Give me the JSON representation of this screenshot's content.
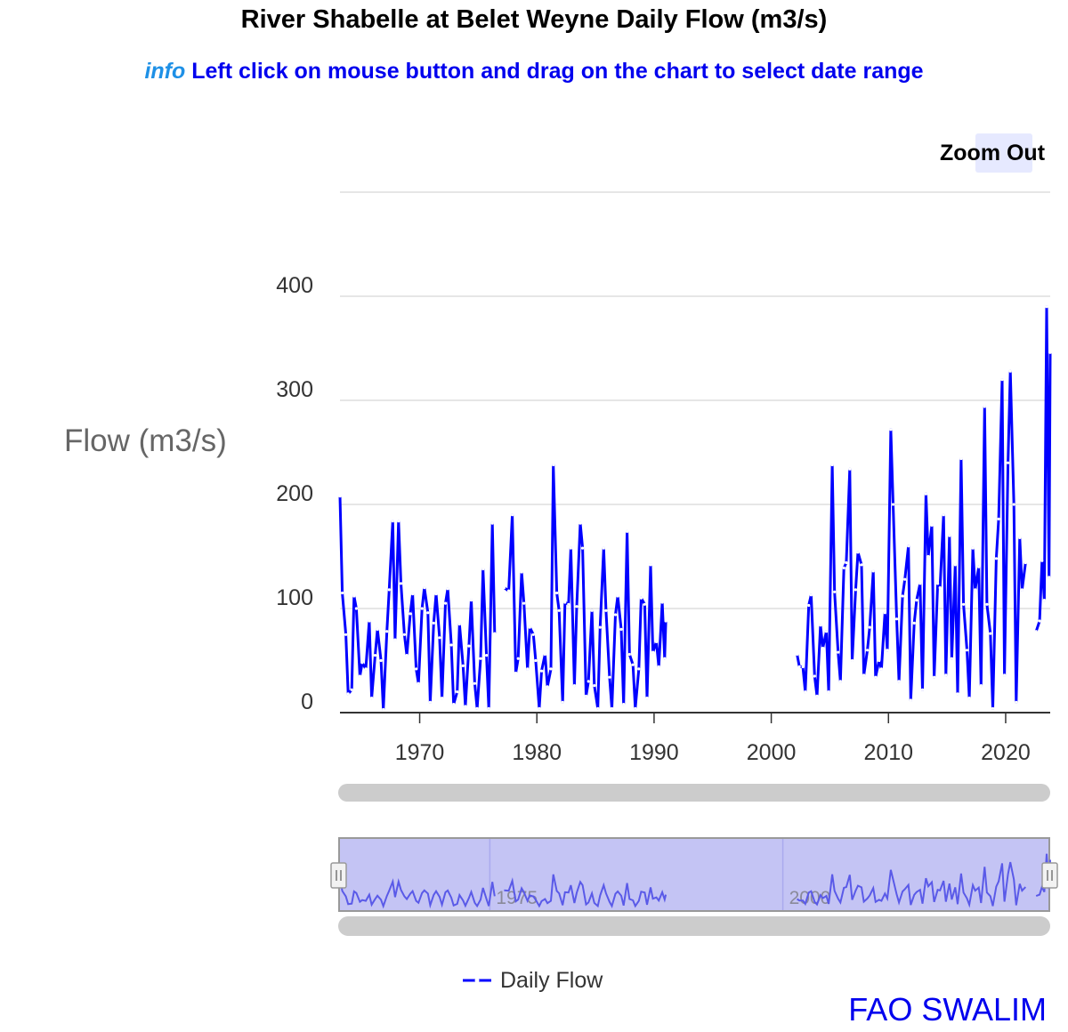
{
  "title": "River Shabelle at Belet Weyne Daily Flow (m3/s)",
  "info": {
    "tag": "info",
    "text": "Left click on mouse button and drag on the chart to select date range"
  },
  "zoom_out_label": "Zoom Out",
  "brand": "FAO SWALIM",
  "colors": {
    "series": "#0000ff",
    "navigator_fill": "#c4c4f4",
    "navigator_line": "#5a5ae8",
    "scrollbar": "#cccccc"
  },
  "chart_data": {
    "type": "line",
    "title": "River Shabelle at Belet Weyne Daily Flow (m3/s)",
    "ylabel": "Flow (m3/s)",
    "xlabel": "",
    "x_range": [
      1963.2,
      2023.8
    ],
    "ylim": [
      0,
      500
    ],
    "yticks": [
      0,
      100,
      200,
      300,
      400
    ],
    "xticks": [
      1970,
      1980,
      1990,
      2000,
      2010,
      2020
    ],
    "navigator_ticks": [
      1975,
      2000
    ],
    "grid": true,
    "legend": "bottom",
    "series": [
      {
        "name": "Daily Flow",
        "segments": [
          [
            [
              1963.2,
              208
            ],
            [
              1963.4,
              115
            ],
            [
              1963.7,
              75
            ],
            [
              1963.9,
              18
            ],
            [
              1964.2,
              22
            ],
            [
              1964.4,
              112
            ],
            [
              1964.6,
              100
            ],
            [
              1964.9,
              35
            ],
            [
              1965.1,
              48
            ],
            [
              1965.4,
              42
            ],
            [
              1965.7,
              88
            ],
            [
              1965.9,
              14
            ],
            [
              1966.2,
              55
            ],
            [
              1966.4,
              80
            ],
            [
              1966.7,
              50
            ],
            [
              1966.9,
              3
            ],
            [
              1967.2,
              78
            ],
            [
              1967.4,
              118
            ],
            [
              1967.7,
              184
            ],
            [
              1967.9,
              70
            ],
            [
              1968.2,
              184
            ],
            [
              1968.4,
              124
            ],
            [
              1968.7,
              75
            ],
            [
              1968.9,
              55
            ],
            [
              1969.2,
              95
            ],
            [
              1969.4,
              114
            ],
            [
              1969.7,
              42
            ],
            [
              1969.9,
              28
            ],
            [
              1970.2,
              100
            ],
            [
              1970.4,
              120
            ],
            [
              1970.7,
              96
            ],
            [
              1970.9,
              10
            ],
            [
              1971.2,
              86
            ],
            [
              1971.4,
              114
            ],
            [
              1971.7,
              72
            ],
            [
              1971.9,
              14
            ],
            [
              1972.2,
              105
            ],
            [
              1972.4,
              119
            ],
            [
              1972.7,
              65
            ],
            [
              1972.9,
              8
            ],
            [
              1973.2,
              20
            ],
            [
              1973.4,
              85
            ],
            [
              1973.7,
              45
            ],
            [
              1973.9,
              6
            ],
            [
              1974.2,
              64
            ],
            [
              1974.4,
              108
            ],
            [
              1974.7,
              28
            ],
            [
              1974.9,
              4
            ],
            [
              1975.2,
              52
            ],
            [
              1975.4,
              138
            ],
            [
              1975.7,
              55
            ],
            [
              1975.9,
              4
            ],
            [
              1976.2,
              182
            ],
            [
              1976.4,
              76
            ]
          ],
          [
            [
              1977.2,
              120
            ],
            [
              1977.6,
              117
            ],
            [
              1977.9,
              190
            ],
            [
              1978.2,
              38
            ],
            [
              1978.4,
              52
            ],
            [
              1978.7,
              135
            ],
            [
              1978.9,
              105
            ],
            [
              1979.2,
              42
            ],
            [
              1979.4,
              82
            ],
            [
              1979.7,
              75
            ],
            [
              1979.9,
              50
            ],
            [
              1980.2,
              4
            ],
            [
              1980.4,
              40
            ],
            [
              1980.7,
              56
            ],
            [
              1980.9,
              25
            ],
            [
              1981.2,
              42
            ],
            [
              1981.4,
              238
            ],
            [
              1981.7,
              115
            ],
            [
              1981.9,
              98
            ],
            [
              1982.2,
              10
            ],
            [
              1982.4,
              106
            ],
            [
              1982.7,
              104
            ],
            [
              1982.9,
              158
            ],
            [
              1983.2,
              26
            ],
            [
              1983.4,
              102
            ],
            [
              1983.7,
              182
            ],
            [
              1983.9,
              158
            ],
            [
              1984.2,
              16
            ],
            [
              1984.4,
              30
            ],
            [
              1984.7,
              98
            ],
            [
              1984.9,
              26
            ],
            [
              1985.2,
              4
            ],
            [
              1985.4,
              82
            ],
            [
              1985.7,
              158
            ],
            [
              1985.9,
              98
            ],
            [
              1986.2,
              34
            ],
            [
              1986.4,
              4
            ],
            [
              1986.7,
              94
            ],
            [
              1986.9,
              112
            ],
            [
              1987.2,
              80
            ],
            [
              1987.4,
              8
            ],
            [
              1987.7,
              174
            ],
            [
              1987.9,
              56
            ],
            [
              1988.2,
              46
            ],
            [
              1988.4,
              4
            ],
            [
              1988.7,
              42
            ],
            [
              1988.9,
              110
            ],
            [
              1989.2,
              104
            ],
            [
              1989.4,
              14
            ],
            [
              1989.7,
              142
            ],
            [
              1989.9,
              58
            ],
            [
              1990.2,
              68
            ],
            [
              1990.4,
              44
            ],
            [
              1990.7,
              106
            ],
            [
              1990.9,
              52
            ],
            [
              1991.0,
              88
            ]
          ],
          [
            [
              2002.2,
              56
            ],
            [
              2002.4,
              44
            ],
            [
              2002.7,
              44
            ],
            [
              2002.9,
              20
            ],
            [
              2003.2,
              103
            ],
            [
              2003.4,
              113
            ],
            [
              2003.7,
              35
            ],
            [
              2003.9,
              16
            ],
            [
              2004.2,
              84
            ],
            [
              2004.4,
              62
            ],
            [
              2004.7,
              78
            ],
            [
              2004.9,
              20
            ],
            [
              2005.2,
              238
            ],
            [
              2005.4,
              116
            ],
            [
              2005.7,
              58
            ],
            [
              2005.9,
              30
            ],
            [
              2006.2,
              139
            ],
            [
              2006.4,
              144
            ],
            [
              2006.7,
              234
            ],
            [
              2006.9,
              50
            ],
            [
              2007.2,
              118
            ],
            [
              2007.4,
              154
            ],
            [
              2007.7,
              142
            ],
            [
              2007.9,
              36
            ],
            [
              2008.2,
              60
            ],
            [
              2008.4,
              82
            ],
            [
              2008.7,
              136
            ],
            [
              2008.9,
              34
            ],
            [
              2009.2,
              50
            ],
            [
              2009.4,
              42
            ],
            [
              2009.7,
              96
            ],
            [
              2009.9,
              60
            ],
            [
              2010.2,
              272
            ],
            [
              2010.4,
              200
            ],
            [
              2010.7,
              90
            ],
            [
              2010.9,
              30
            ],
            [
              2011.2,
              112
            ],
            [
              2011.4,
              128
            ],
            [
              2011.7,
              160
            ],
            [
              2011.9,
              12
            ],
            [
              2012.2,
              86
            ],
            [
              2012.4,
              108
            ],
            [
              2012.7,
              124
            ],
            [
              2012.9,
              22
            ],
            [
              2013.2,
              210
            ],
            [
              2013.4,
              150
            ],
            [
              2013.7,
              180
            ],
            [
              2013.9,
              34
            ],
            [
              2014.2,
              124
            ],
            [
              2014.4,
              120
            ],
            [
              2014.7,
              190
            ],
            [
              2014.9,
              36
            ],
            [
              2015.2,
              170
            ],
            [
              2015.4,
              52
            ],
            [
              2015.7,
              142
            ],
            [
              2015.9,
              18
            ],
            [
              2016.2,
              244
            ],
            [
              2016.4,
              104
            ],
            [
              2016.7,
              60
            ],
            [
              2016.9,
              14
            ],
            [
              2017.2,
              158
            ],
            [
              2017.4,
              118
            ],
            [
              2017.7,
              140
            ],
            [
              2017.9,
              26
            ],
            [
              2018.2,
              294
            ],
            [
              2018.4,
              104
            ],
            [
              2018.7,
              76
            ],
            [
              2018.9,
              4
            ],
            [
              2019.2,
              148
            ],
            [
              2019.4,
              186
            ],
            [
              2019.7,
              320
            ],
            [
              2019.9,
              36
            ],
            [
              2020.2,
              240
            ],
            [
              2020.4,
              328
            ],
            [
              2020.7,
              200
            ],
            [
              2020.9,
              10
            ],
            [
              2021.2,
              168
            ],
            [
              2021.4,
              118
            ],
            [
              2021.7,
              144
            ]
          ],
          [
            [
              2022.6,
              78
            ],
            [
              2022.9,
              88
            ],
            [
              2023.1,
              146
            ],
            [
              2023.3,
              108
            ],
            [
              2023.5,
              390
            ],
            [
              2023.7,
              130
            ],
            [
              2023.8,
              346
            ]
          ]
        ]
      }
    ]
  }
}
